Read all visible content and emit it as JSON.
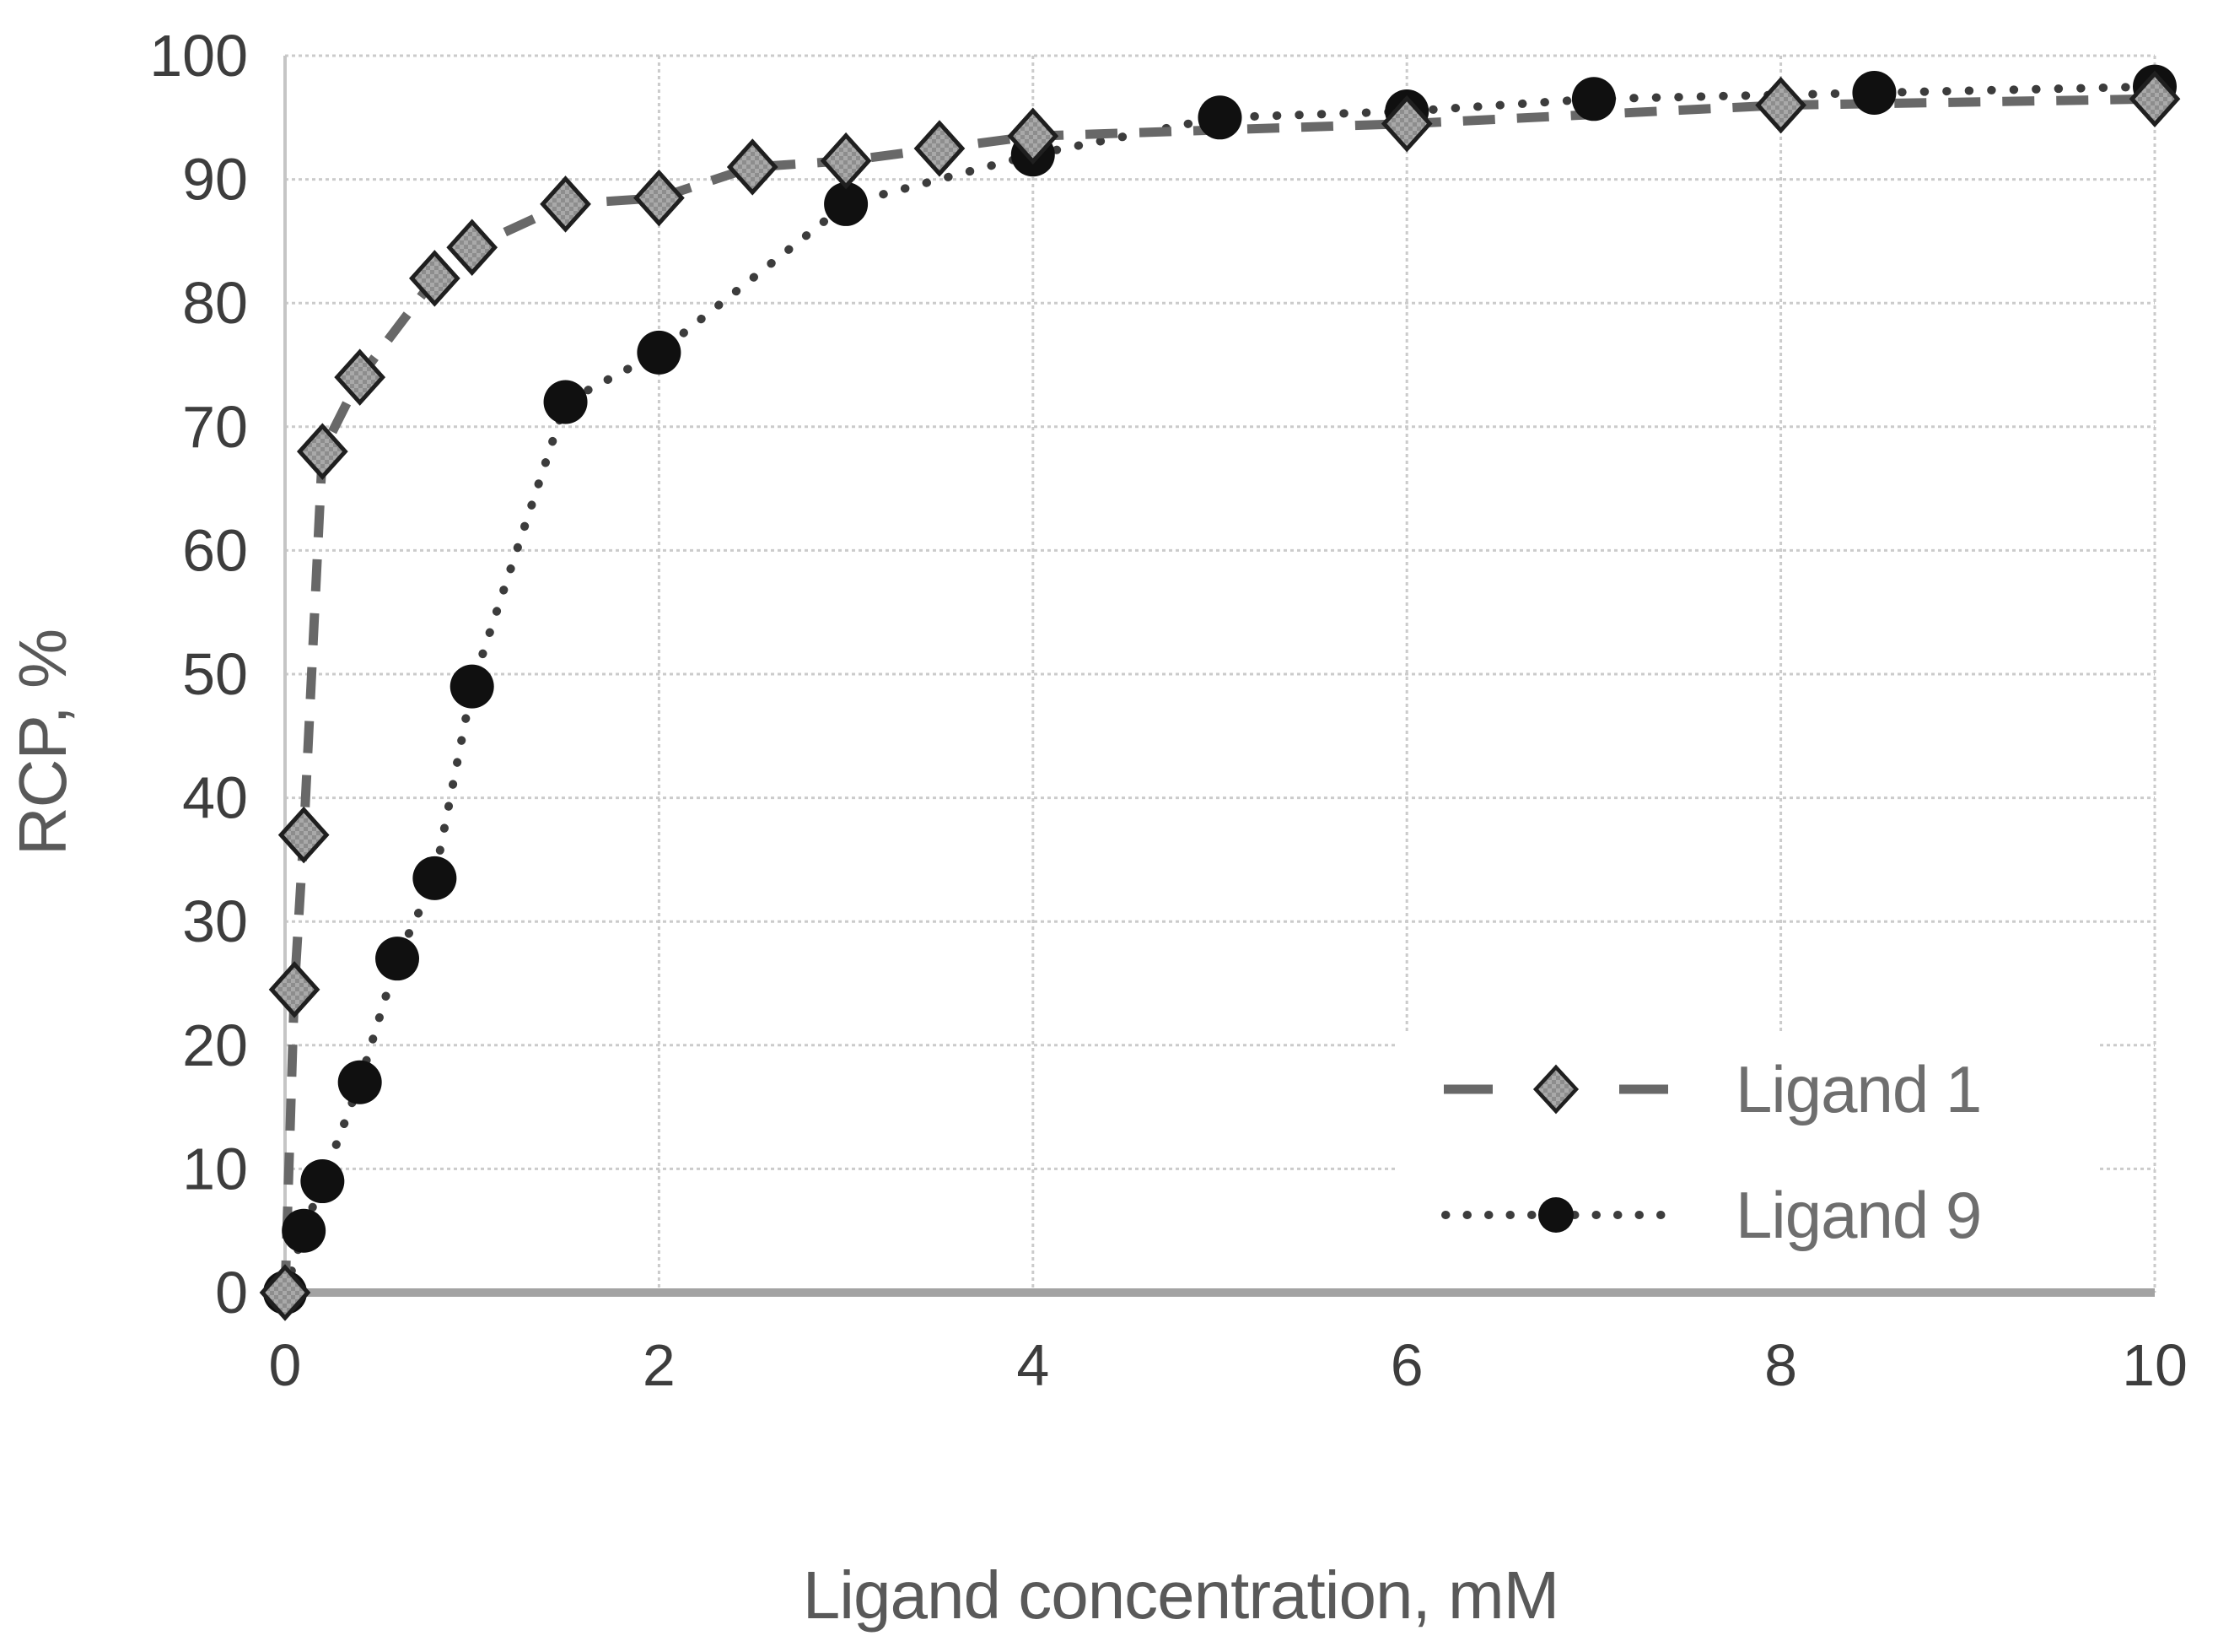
{
  "figure": {
    "background": "#ffffff"
  },
  "chart_data": {
    "type": "line-scatter",
    "title": "",
    "xlabel": "Ligand concentration, mM",
    "ylabel": "RCP, %",
    "xlim": [
      0,
      10
    ],
    "ylim": [
      0,
      100
    ],
    "xticks": [
      0,
      2,
      4,
      6,
      8,
      10
    ],
    "yticks": [
      0,
      10,
      20,
      30,
      40,
      50,
      60,
      70,
      80,
      90,
      100
    ],
    "grid": true,
    "gridline_color": "#cbcbcb",
    "axis_line_color": "#a3a3a3",
    "tick_label_color": "#3d3d3d",
    "axis_title_color": "#595959",
    "legend_position": "inside-bottom-right",
    "legend_text_color": "#6e6e6e",
    "series": [
      {
        "name": "Ligand 1",
        "marker": "diamond",
        "marker_fill": "#a9a9a9",
        "marker_checker": "#8d8d8d",
        "marker_edge": "#1f1f1f",
        "line_style": "dashed",
        "line_color": "#686868",
        "points": [
          [
            0,
            0
          ],
          [
            0.05,
            24.5
          ],
          [
            0.1,
            37
          ],
          [
            0.2,
            68
          ],
          [
            0.4,
            74
          ],
          [
            0.8,
            82
          ],
          [
            1,
            84.5
          ],
          [
            1.5,
            88
          ],
          [
            2,
            88.5
          ],
          [
            2.5,
            91
          ],
          [
            3,
            91.5
          ],
          [
            3.5,
            92.5
          ],
          [
            4,
            93.5
          ],
          [
            6,
            94.5
          ],
          [
            8,
            96
          ],
          [
            10,
            96.5
          ]
        ]
      },
      {
        "name": "Ligand 9",
        "marker": "circle",
        "marker_fill": "#101010",
        "marker_edge": "#101010",
        "line_style": "dotted",
        "line_color": "#3c3c3c",
        "points": [
          [
            0,
            0
          ],
          [
            0.1,
            5
          ],
          [
            0.2,
            9
          ],
          [
            0.4,
            17
          ],
          [
            0.6,
            27
          ],
          [
            0.8,
            33.5
          ],
          [
            1,
            49
          ],
          [
            1.5,
            72
          ],
          [
            2,
            76
          ],
          [
            3,
            88
          ],
          [
            4,
            92
          ],
          [
            5,
            95
          ],
          [
            6,
            95.5
          ],
          [
            7,
            96.5
          ],
          [
            8.5,
            97
          ],
          [
            10,
            97.5
          ]
        ]
      }
    ]
  }
}
